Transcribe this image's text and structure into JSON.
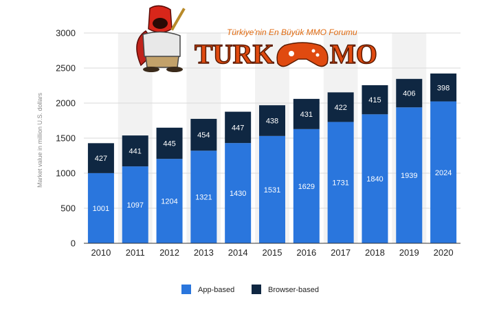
{
  "logo": {
    "tagline": "Türkiye'nin En Büyük MMO Forumu",
    "wordmark_left": "TURK",
    "wordmark_right": "MO",
    "icon": "gamepad-icon",
    "mascot": "hooded-mascot-icon"
  },
  "chart_data": {
    "type": "bar",
    "stacked": true,
    "categories": [
      "2010",
      "2011",
      "2012",
      "2013",
      "2014",
      "2015",
      "2016",
      "2017",
      "2018",
      "2019",
      "2020"
    ],
    "series": [
      {
        "name": "App-based",
        "color": "#2a76dd",
        "values": [
          1001,
          1097,
          1204,
          1321,
          1430,
          1531,
          1629,
          1731,
          1840,
          1939,
          2024
        ]
      },
      {
        "name": "Browser-based",
        "color": "#0f2742",
        "values": [
          427,
          441,
          445,
          454,
          447,
          438,
          431,
          422,
          415,
          406,
          398
        ]
      }
    ],
    "ylabel": "Market value in million U.S. dollars",
    "ylim": [
      0,
      3000
    ],
    "yticks": [
      0,
      500,
      1000,
      1500,
      2000,
      2500,
      3000
    ],
    "grid": true,
    "alternate_column_shading": true,
    "legend_position": "bottom"
  }
}
